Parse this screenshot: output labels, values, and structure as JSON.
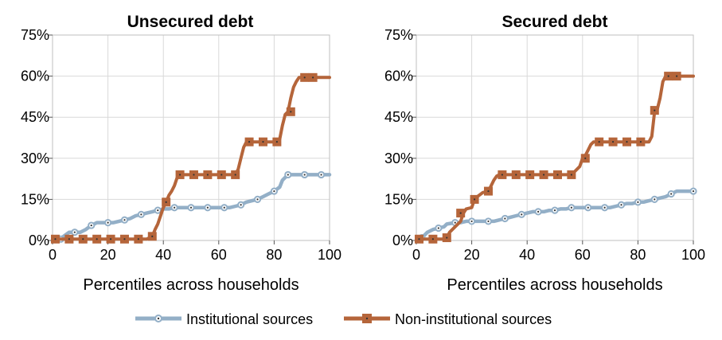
{
  "legend": {
    "placement": "bottom",
    "items": [
      {
        "label": "Institutional sources",
        "color": "#93afc7",
        "marker": "circle"
      },
      {
        "label": "Non-institutional sources",
        "color": "#b5653a",
        "marker": "square"
      }
    ]
  },
  "chart_data": [
    {
      "type": "line",
      "title": "Unsecured debt",
      "xlabel": "Percentiles across households",
      "ylabel": "",
      "xlim": [
        0,
        100
      ],
      "ylim": [
        0,
        75
      ],
      "xticks": [
        "0",
        "20",
        "40",
        "60",
        "80",
        "100"
      ],
      "yticks": [
        "0%",
        "15%",
        "30%",
        "45%",
        "60%",
        "75%"
      ],
      "grid": "vertical",
      "series": [
        {
          "name": "Institutional sources",
          "points": [
            [
              1,
              0.5
            ],
            [
              3,
              0.5
            ],
            [
              4,
              1.5
            ],
            [
              6,
              3
            ],
            [
              8,
              3
            ],
            [
              10,
              3
            ],
            [
              12,
              4
            ],
            [
              14,
              5.5
            ],
            [
              16,
              6.5
            ],
            [
              18,
              6.5
            ],
            [
              20,
              6.5
            ],
            [
              22,
              6.5
            ],
            [
              24,
              7
            ],
            [
              26,
              7.5
            ],
            [
              28,
              8
            ],
            [
              30,
              9
            ],
            [
              32,
              9.5
            ],
            [
              34,
              10
            ],
            [
              36,
              10.5
            ],
            [
              38,
              11
            ],
            [
              40,
              11.5
            ],
            [
              42,
              11.5
            ],
            [
              44,
              12
            ],
            [
              46,
              12
            ],
            [
              48,
              12
            ],
            [
              50,
              12
            ],
            [
              52,
              12
            ],
            [
              54,
              12
            ],
            [
              56,
              12
            ],
            [
              58,
              12
            ],
            [
              60,
              12
            ],
            [
              62,
              12
            ],
            [
              64,
              12
            ],
            [
              66,
              12.5
            ],
            [
              68,
              13
            ],
            [
              70,
              14
            ],
            [
              72,
              14.5
            ],
            [
              74,
              15
            ],
            [
              76,
              16
            ],
            [
              78,
              17
            ],
            [
              80,
              18
            ],
            [
              82,
              19.5
            ],
            [
              83,
              22
            ],
            [
              85,
              24
            ],
            [
              87,
              24
            ],
            [
              89,
              24
            ],
            [
              91,
              24
            ],
            [
              93,
              24
            ],
            [
              95,
              24
            ],
            [
              97,
              24
            ],
            [
              100,
              24
            ]
          ]
        },
        {
          "name": "Non-institutional sources",
          "points": [
            [
              1,
              0.5
            ],
            [
              10,
              0.5
            ],
            [
              20,
              0.5
            ],
            [
              30,
              0.5
            ],
            [
              34,
              0.5
            ],
            [
              35,
              1
            ],
            [
              36,
              1.5
            ],
            [
              37,
              4
            ],
            [
              38,
              6
            ],
            [
              39,
              9
            ],
            [
              40,
              12
            ],
            [
              41,
              14
            ],
            [
              42,
              16.5
            ],
            [
              43,
              18
            ],
            [
              44,
              20
            ],
            [
              45,
              23
            ],
            [
              46,
              24
            ],
            [
              60,
              24
            ],
            [
              66,
              24
            ],
            [
              67,
              26
            ],
            [
              68,
              30
            ],
            [
              69,
              34
            ],
            [
              70,
              36
            ],
            [
              81,
              36
            ],
            [
              82,
              37
            ],
            [
              83,
              42
            ],
            [
              84,
              46
            ],
            [
              85,
              47
            ],
            [
              86,
              52
            ],
            [
              87,
              56
            ],
            [
              88,
              58
            ],
            [
              89,
              59.5
            ],
            [
              100,
              59.5
            ]
          ],
          "markers": [
            [
              1,
              0.5
            ],
            [
              6,
              0.5
            ],
            [
              11,
              0.5
            ],
            [
              16,
              0.5
            ],
            [
              21,
              0.5
            ],
            [
              26,
              0.5
            ],
            [
              31,
              0.5
            ],
            [
              36,
              1.5
            ],
            [
              41,
              14
            ],
            [
              46,
              24
            ],
            [
              51,
              24
            ],
            [
              56,
              24
            ],
            [
              61,
              24
            ],
            [
              66,
              24
            ],
            [
              71,
              36
            ],
            [
              76,
              36
            ],
            [
              81,
              36
            ],
            [
              86,
              47
            ],
            [
              91,
              59.5
            ],
            [
              94,
              59.5
            ]
          ]
        }
      ]
    },
    {
      "type": "line",
      "title": "Secured debt",
      "xlabel": "Percentiles across households",
      "ylabel": "",
      "xlim": [
        0,
        100
      ],
      "ylim": [
        0,
        75
      ],
      "xticks": [
        "0",
        "20",
        "40",
        "60",
        "80",
        "100"
      ],
      "yticks": [
        "0%",
        "15%",
        "30%",
        "45%",
        "60%",
        "75%"
      ],
      "grid": "vertical",
      "series": [
        {
          "name": "Institutional sources",
          "points": [
            [
              1,
              0.5
            ],
            [
              2,
              1
            ],
            [
              4,
              3
            ],
            [
              6,
              4
            ],
            [
              8,
              4.5
            ],
            [
              10,
              5
            ],
            [
              11,
              6
            ],
            [
              14,
              6.5
            ],
            [
              16,
              6.5
            ],
            [
              18,
              7
            ],
            [
              20,
              7
            ],
            [
              22,
              7
            ],
            [
              24,
              7
            ],
            [
              26,
              7
            ],
            [
              28,
              7
            ],
            [
              30,
              7.5
            ],
            [
              32,
              8
            ],
            [
              34,
              8.5
            ],
            [
              36,
              9
            ],
            [
              38,
              9.5
            ],
            [
              40,
              10
            ],
            [
              42,
              10.5
            ],
            [
              44,
              10.5
            ],
            [
              46,
              10.5
            ],
            [
              48,
              11
            ],
            [
              50,
              11
            ],
            [
              52,
              11.5
            ],
            [
              54,
              11.5
            ],
            [
              56,
              12
            ],
            [
              58,
              12
            ],
            [
              60,
              12
            ],
            [
              62,
              12
            ],
            [
              64,
              12
            ],
            [
              66,
              12
            ],
            [
              68,
              12
            ],
            [
              70,
              12
            ],
            [
              72,
              12.5
            ],
            [
              74,
              13
            ],
            [
              76,
              13.5
            ],
            [
              78,
              13.5
            ],
            [
              80,
              14
            ],
            [
              82,
              14
            ],
            [
              84,
              14.5
            ],
            [
              86,
              15
            ],
            [
              88,
              15.5
            ],
            [
              90,
              16
            ],
            [
              92,
              17
            ],
            [
              94,
              18
            ],
            [
              96,
              18
            ],
            [
              100,
              18
            ]
          ]
        },
        {
          "name": "Non-institutional sources",
          "points": [
            [
              1,
              0.5
            ],
            [
              10,
              0.5
            ],
            [
              11,
              1
            ],
            [
              12,
              3
            ],
            [
              14,
              5
            ],
            [
              16,
              7
            ],
            [
              17,
              10
            ],
            [
              18,
              11.5
            ],
            [
              20,
              12
            ],
            [
              21,
              15
            ],
            [
              22,
              16
            ],
            [
              24,
              17.5
            ],
            [
              26,
              18
            ],
            [
              27,
              20
            ],
            [
              28,
              22
            ],
            [
              29,
              23.5
            ],
            [
              30,
              24
            ],
            [
              56,
              24
            ],
            [
              57,
              25
            ],
            [
              59,
              27
            ],
            [
              60,
              30
            ],
            [
              61,
              31
            ],
            [
              62,
              33
            ],
            [
              63,
              35
            ],
            [
              64,
              36
            ],
            [
              84,
              36
            ],
            [
              85,
              38
            ],
            [
              86,
              47
            ],
            [
              87,
              48
            ],
            [
              88,
              52
            ],
            [
              89,
              58
            ],
            [
              90,
              60
            ],
            [
              100,
              60
            ]
          ],
          "markers": [
            [
              1,
              0.5
            ],
            [
              6,
              0.5
            ],
            [
              11,
              1
            ],
            [
              16,
              10
            ],
            [
              21,
              15
            ],
            [
              26,
              18
            ],
            [
              31,
              24
            ],
            [
              36,
              24
            ],
            [
              41,
              24
            ],
            [
              46,
              24
            ],
            [
              51,
              24
            ],
            [
              56,
              24
            ],
            [
              61,
              30
            ],
            [
              66,
              36
            ],
            [
              71,
              36
            ],
            [
              76,
              36
            ],
            [
              81,
              36
            ],
            [
              86,
              47.5
            ],
            [
              91,
              60
            ],
            [
              94,
              60
            ]
          ]
        }
      ]
    }
  ]
}
